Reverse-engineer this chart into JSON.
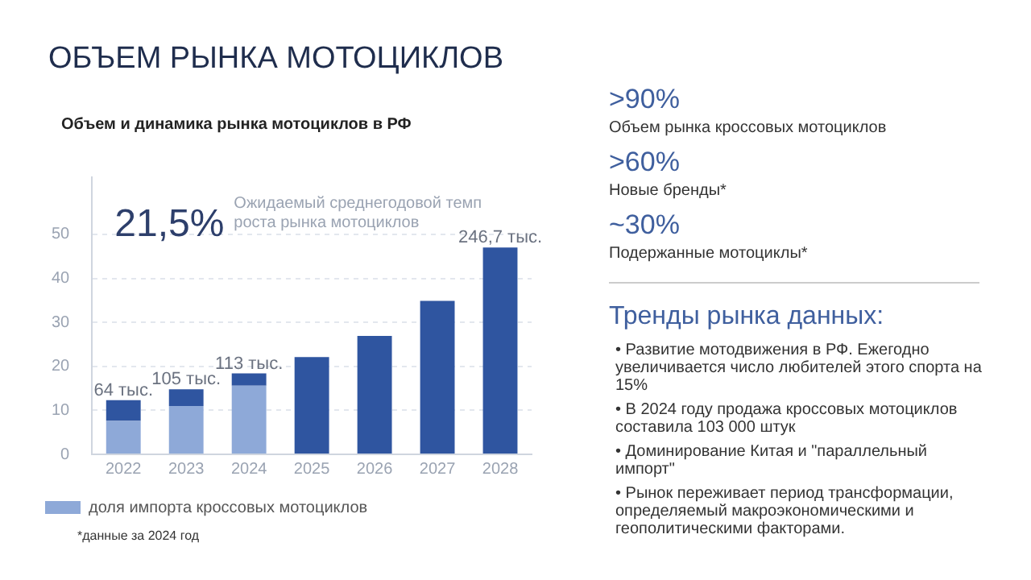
{
  "chart_data": {
    "type": "bar",
    "title": "ОБЪЕМ РЫНКА МОТОЦИКЛОВ",
    "subtitle": "Объем и динамика рынка мотоциклов в РФ",
    "categories": [
      "2022",
      "2023",
      "2024",
      "2025",
      "2026",
      "2027",
      "2028"
    ],
    "series": [
      {
        "name": "доля импорта кроссовых мотоциклов",
        "color": "#8ea9d8",
        "values": [
          7.6,
          11.0,
          15.6,
          null,
          null,
          null,
          null
        ]
      },
      {
        "color": "#2f55a0",
        "values": [
          4.7,
          3.8,
          2.8,
          22.1,
          26.9,
          34.9,
          47.0
        ]
      }
    ],
    "stacked": true,
    "ylim": [
      0,
      63
    ],
    "yticks": [
      0,
      10,
      20,
      30,
      40,
      50
    ],
    "grid": "y",
    "legend": "bottom",
    "annotations": [
      "21,5%",
      "Ожидаемый среднегодовой темп роста рынка мотоциклов",
      "*данные за 2024 год",
      ">90%",
      "Объем рынка кроссовых мотоциклов",
      ">60%",
      "Новые бренды*",
      "~30%",
      "Подержанные мотоциклы*",
      "Тренды рынка данных:",
      "• Развитие мотодвижения в РФ. Ежегодно увеличивается число любителей этого спорта на 15%",
      "• В 2024 году продажа кроссовых мотоциклов составила 103 000 штук",
      "• Доминирование Китая и \"параллельный импорт\"",
      "• Рынок переживает период трансформации, определяемый макроэкономическими и геополитическими факторами.",
      {
        "text": "64 тыс.",
        "x": "2022",
        "y": 12.3
      },
      {
        "text": "105 тыс.",
        "x": "2023",
        "y": 14.8
      },
      {
        "text": "113 тыс.",
        "x": "2024",
        "y": 18.4
      },
      {
        "text": "246,7 тыс.",
        "x": "2028",
        "y": 47.0
      }
    ]
  }
}
